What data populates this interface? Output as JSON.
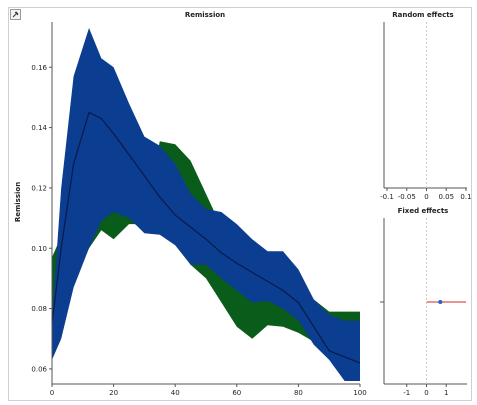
{
  "toolbar": {
    "icon": "pin-icon"
  },
  "chart_data": [
    {
      "type": "area",
      "title": "Remission",
      "xlabel": "",
      "ylabel": "Remission",
      "xlim": [
        0,
        100
      ],
      "ylim": [
        0.055,
        0.175
      ],
      "x_ticks": [
        "0",
        "20",
        "40",
        "60",
        "80",
        "100"
      ],
      "y_ticks": [
        "0.06",
        "0.08",
        "0.10",
        "0.12",
        "0.14",
        "0.16"
      ],
      "x": [
        0,
        3,
        7,
        12,
        16,
        20,
        25,
        30,
        35,
        40,
        45,
        50,
        55,
        60,
        65,
        70,
        75,
        80,
        85,
        90,
        95,
        100
      ],
      "bands": [
        {
          "color": "#0a5c1a",
          "upper": [
            0.097,
            0.104,
            0.112,
            0.12,
            0.124,
            0.114,
            0.113,
            0.109,
            0.1355,
            0.1345,
            0.129,
            0.118,
            0.107,
            0.098,
            0.088,
            0.098,
            0.097,
            0.091,
            0.083,
            0.079,
            0.079,
            0.079
          ],
          "lower": [
            0.068,
            0.085,
            0.091,
            0.1,
            0.106,
            0.103,
            0.108,
            0.108,
            0.108,
            0.1025,
            0.0945,
            0.09,
            0.082,
            0.074,
            0.07,
            0.0745,
            0.074,
            0.072,
            0.069,
            0.068,
            0.068,
            0.068
          ]
        },
        {
          "color": "#0b3d91",
          "upper": [
            0.076,
            0.12,
            0.157,
            0.173,
            0.163,
            0.16,
            0.148,
            0.137,
            0.134,
            0.128,
            0.118,
            0.113,
            0.112,
            0.108,
            0.103,
            0.099,
            0.099,
            0.093,
            0.083,
            0.078,
            0.076,
            0.076
          ],
          "lower": [
            0.063,
            0.07,
            0.087,
            0.1,
            0.109,
            0.112,
            0.11,
            0.105,
            0.1045,
            0.101,
            0.0945,
            0.0945,
            0.09,
            0.086,
            0.082,
            0.0825,
            0.08,
            0.076,
            0.068,
            0.063,
            0.056,
            0.056
          ]
        }
      ],
      "series": [
        {
          "color": "#0a1a4a",
          "values": [
            0.075,
            0.1,
            0.128,
            0.145,
            0.143,
            0.138,
            0.131,
            0.124,
            0.117,
            0.111,
            0.107,
            0.103,
            0.0985,
            0.095,
            0.092,
            0.089,
            0.086,
            0.082,
            0.074,
            0.066,
            0.064,
            0.062
          ]
        }
      ],
      "grid": false,
      "legend": "none"
    },
    {
      "type": "scatter",
      "title": "Random effects",
      "xlim": [
        -0.1,
        0.1
      ],
      "x_ticks": [
        "-0.1",
        "-0.05",
        "0",
        "0.05",
        "0.1"
      ],
      "reference_line": 0,
      "reference_color": "#cccccc",
      "points": []
    },
    {
      "type": "scatter",
      "title": "Fixed effects",
      "xlim": [
        -2,
        2
      ],
      "x_ticks": [
        "-1",
        "0",
        "1"
      ],
      "reference_line": 0,
      "reference_color": "#cccccc",
      "interval_color": "#d9534f",
      "point_color": "#2a5bd7",
      "points": [
        {
          "x": 0.7,
          "lower": -1.0,
          "upper": 2.0
        }
      ]
    }
  ]
}
